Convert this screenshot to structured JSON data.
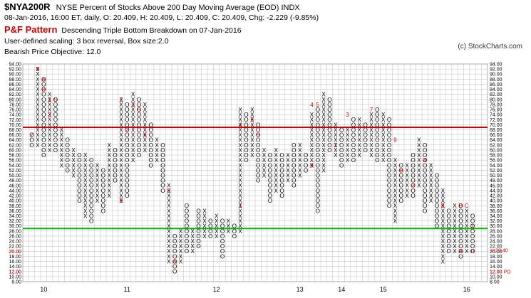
{
  "header": {
    "symbol": "$NYA200R",
    "name": "NYSE Percent of Stocks Above 200 Day Moving Average (EOD)  INDX",
    "ohlc": "08-Jan-2016, 16:00 ET, daily, O: 20.409, H: 20.409, L: 20.409, C: 20.409, Chg: -2.229 (-9.85%)",
    "pattern_title": "P&F Pattern",
    "pattern_text": "Descending Triple Bottom Breakdown on 07-Jan-2016",
    "scaling": "User-defined scaling: 3 box reversal, Box size:2.0",
    "objective": "Bearish Price Objective: 12.0",
    "copyright": "(c) StockCharts.com"
  },
  "colors": {
    "x_color": "#000000",
    "o_color": "#000000",
    "month_color": "#cc0000",
    "resistance": "#cc0000",
    "support": "#00bb00",
    "grid": "#c8c8c8"
  },
  "chart_data": {
    "type": "point-and-figure",
    "box_size": 2.0,
    "reversal": 3,
    "ylim": [
      8,
      94
    ],
    "y_ticks": [
      "94.00",
      "92.00",
      "90.00",
      "88.00",
      "86.00",
      "84.00",
      "82.00",
      "80.00",
      "78.00",
      "76.00",
      "74.00",
      "72.00",
      "70.00",
      "68.00",
      "66.00",
      "64.00",
      "62.00",
      "60.00",
      "58.00",
      "56.00",
      "54.00",
      "52.00",
      "50.00",
      "48.00",
      "46.00",
      "44.00",
      "42.00",
      "40.00",
      "38.00",
      "36.00",
      "34.00",
      "32.00",
      "30.00",
      "28.00",
      "26.00",
      "24.00",
      "22.00",
      "20.00",
      "18.00",
      "16.00",
      "14.00",
      "12.00",
      "10.00",
      "8.00"
    ],
    "x_labels": [
      {
        "text": "10",
        "col": 2
      },
      {
        "text": "11",
        "col": 16
      },
      {
        "text": "12",
        "col": 31
      },
      {
        "text": "13",
        "col": 45
      },
      {
        "text": "14",
        "col": 52
      },
      {
        "text": "15",
        "col": 59
      },
      {
        "text": "16",
        "col": 73
      }
    ],
    "resistance_line": 69,
    "support_line": 29,
    "columns": [
      {
        "t": "O",
        "lo": 62,
        "hi": 66
      },
      {
        "t": "X",
        "lo": 62,
        "hi": 92
      },
      {
        "t": "O",
        "lo": 58,
        "hi": 88
      },
      {
        "t": "X",
        "lo": 60,
        "hi": 82
      },
      {
        "t": "O",
        "lo": 60,
        "hi": 80
      },
      {
        "t": "X",
        "lo": 54,
        "hi": 68
      },
      {
        "t": "O",
        "lo": 52,
        "hi": 64
      },
      {
        "t": "X",
        "lo": 50,
        "hi": 60
      },
      {
        "t": "O",
        "lo": 40,
        "hi": 58
      },
      {
        "t": "X",
        "lo": 34,
        "hi": 58
      },
      {
        "t": "O",
        "lo": 32,
        "hi": 56
      },
      {
        "t": "X",
        "lo": 40,
        "hi": 54
      },
      {
        "t": "O",
        "lo": 36,
        "hi": 52
      },
      {
        "t": "X",
        "lo": 42,
        "hi": 62
      },
      {
        "t": "O",
        "lo": 48,
        "hi": 60
      },
      {
        "t": "X",
        "lo": 40,
        "hi": 80
      },
      {
        "t": "O",
        "lo": 42,
        "hi": 78
      },
      {
        "t": "X",
        "lo": 56,
        "hi": 82
      },
      {
        "t": "O",
        "lo": 58,
        "hi": 80
      },
      {
        "t": "X",
        "lo": 60,
        "hi": 78
      },
      {
        "t": "O",
        "lo": 54,
        "hi": 70
      },
      {
        "t": "X",
        "lo": 56,
        "hi": 64
      },
      {
        "t": "O",
        "lo": 44,
        "hi": 62
      },
      {
        "t": "X",
        "lo": 16,
        "hi": 46
      },
      {
        "t": "O",
        "lo": 12,
        "hi": 26
      },
      {
        "t": "X",
        "lo": 16,
        "hi": 28
      },
      {
        "t": "O",
        "lo": 20,
        "hi": 38
      },
      {
        "t": "X",
        "lo": 20,
        "hi": 28
      },
      {
        "t": "O",
        "lo": 22,
        "hi": 36
      },
      {
        "t": "X",
        "lo": 26,
        "hi": 36
      },
      {
        "t": "O",
        "lo": 26,
        "hi": 32
      },
      {
        "t": "X",
        "lo": 26,
        "hi": 34
      },
      {
        "t": "O",
        "lo": 18,
        "hi": 32
      },
      {
        "t": "X",
        "lo": 28,
        "hi": 32
      },
      {
        "t": "O",
        "lo": 26,
        "hi": 30
      },
      {
        "t": "X",
        "lo": 28,
        "hi": 76
      },
      {
        "t": "O",
        "lo": 56,
        "hi": 74
      },
      {
        "t": "X",
        "lo": 58,
        "hi": 76
      },
      {
        "t": "O",
        "lo": 48,
        "hi": 70
      },
      {
        "t": "X",
        "lo": 50,
        "hi": 60
      },
      {
        "t": "O",
        "lo": 40,
        "hi": 58
      },
      {
        "t": "X",
        "lo": 44,
        "hi": 60
      },
      {
        "t": "O",
        "lo": 42,
        "hi": 58
      },
      {
        "t": "X",
        "lo": 48,
        "hi": 58
      },
      {
        "t": "O",
        "lo": 46,
        "hi": 62
      },
      {
        "t": "X",
        "lo": 50,
        "hi": 62
      },
      {
        "t": "O",
        "lo": 52,
        "hi": 58
      },
      {
        "t": "X",
        "lo": 54,
        "hi": 74
      },
      {
        "t": "O",
        "lo": 36,
        "hi": 76
      },
      {
        "t": "X",
        "lo": 52,
        "hi": 82
      },
      {
        "t": "O",
        "lo": 60,
        "hi": 80
      },
      {
        "t": "X",
        "lo": 58,
        "hi": 70
      },
      {
        "t": "O",
        "lo": 54,
        "hi": 68
      },
      {
        "t": "X",
        "lo": 56,
        "hi": 68
      },
      {
        "t": "O",
        "lo": 56,
        "hi": 72
      },
      {
        "t": "X",
        "lo": 58,
        "hi": 72
      },
      {
        "t": "O",
        "lo": 60,
        "hi": 70
      },
      {
        "t": "X",
        "lo": 58,
        "hi": 74
      },
      {
        "t": "O",
        "lo": 56,
        "hi": 76
      },
      {
        "t": "X",
        "lo": 56,
        "hi": 74
      },
      {
        "t": "O",
        "lo": 38,
        "hi": 72
      },
      {
        "t": "X",
        "lo": 32,
        "hi": 56
      },
      {
        "t": "O",
        "lo": 40,
        "hi": 54
      },
      {
        "t": "X",
        "lo": 42,
        "hi": 54
      },
      {
        "t": "O",
        "lo": 42,
        "hi": 58
      },
      {
        "t": "X",
        "lo": 46,
        "hi": 64
      },
      {
        "t": "O",
        "lo": 36,
        "hi": 62
      },
      {
        "t": "X",
        "lo": 40,
        "hi": 54
      },
      {
        "t": "O",
        "lo": 30,
        "hi": 50
      },
      {
        "t": "X",
        "lo": 16,
        "hi": 44
      },
      {
        "t": "O",
        "lo": 20,
        "hi": 36
      },
      {
        "t": "X",
        "lo": 20,
        "hi": 38
      },
      {
        "t": "O",
        "lo": 18,
        "hi": 38
      },
      {
        "t": "X",
        "lo": 20,
        "hi": 36
      },
      {
        "t": "O",
        "lo": 20,
        "hi": 34
      }
    ],
    "month_marks": [
      {
        "text": "9",
        "col": 1,
        "v": 92
      },
      {
        "text": "A",
        "col": 2,
        "v": 88
      },
      {
        "text": "B",
        "col": 2,
        "v": 84
      },
      {
        "text": "1",
        "col": 3,
        "v": 80
      },
      {
        "text": "2",
        "col": 3,
        "v": 74
      },
      {
        "text": "7",
        "col": 0,
        "v": 66
      },
      {
        "text": "5",
        "col": 4,
        "v": 80
      },
      {
        "text": "2",
        "col": 15,
        "v": 80
      },
      {
        "text": "3",
        "col": 17,
        "v": 78
      },
      {
        "text": "5",
        "col": 18,
        "v": 76
      },
      {
        "text": "2",
        "col": 16,
        "v": 68
      },
      {
        "text": "6",
        "col": 19,
        "v": 66
      },
      {
        "text": "8",
        "col": 23,
        "v": 44
      },
      {
        "text": "9",
        "col": 15,
        "v": 40
      },
      {
        "text": "A",
        "col": 24,
        "v": 16
      },
      {
        "text": "1",
        "col": 35,
        "v": 38
      },
      {
        "text": "4",
        "col": 35,
        "v": 70
      },
      {
        "text": "6",
        "col": 37,
        "v": 72
      },
      {
        "text": "5",
        "col": 38,
        "v": 66
      },
      {
        "text": "4",
        "col": 47,
        "v": 78
      },
      {
        "text": "5",
        "col": 48,
        "v": 78
      },
      {
        "text": "1",
        "col": 51,
        "v": 62
      },
      {
        "text": "9",
        "col": 47,
        "v": 54
      },
      {
        "text": "3",
        "col": 53,
        "v": 74
      },
      {
        "text": "7",
        "col": 57,
        "v": 76
      },
      {
        "text": "9",
        "col": 61,
        "v": 64
      },
      {
        "text": "B",
        "col": 62,
        "v": 52
      },
      {
        "text": "2",
        "col": 64,
        "v": 46
      },
      {
        "text": "4",
        "col": 66,
        "v": 56
      },
      {
        "text": "8",
        "col": 69,
        "v": 38
      },
      {
        "text": "A",
        "col": 72,
        "v": 20
      },
      {
        "text": "B",
        "col": 72,
        "v": 38
      },
      {
        "text": "C",
        "col": 73,
        "v": 38
      },
      {
        "text": "1",
        "col": 74,
        "v": 30
      },
      {
        "text": "0",
        "col": 74,
        "v": 20
      }
    ],
    "right_markers": [
      {
        "text": "<<20.40",
        "v": 20.4
      },
      {
        "text": "12.00 PO",
        "v": 12
      }
    ]
  }
}
